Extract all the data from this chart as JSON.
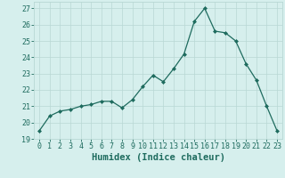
{
  "x": [
    0,
    1,
    2,
    3,
    4,
    5,
    6,
    7,
    8,
    9,
    10,
    11,
    12,
    13,
    14,
    15,
    16,
    17,
    18,
    19,
    20,
    21,
    22,
    23
  ],
  "y": [
    19.5,
    20.4,
    20.7,
    20.8,
    21.0,
    21.1,
    21.3,
    21.3,
    20.9,
    21.4,
    22.2,
    22.9,
    22.5,
    23.3,
    24.2,
    26.2,
    27.0,
    25.6,
    25.5,
    25.0,
    23.6,
    22.6,
    21.0,
    19.5
  ],
  "xlabel": "Humidex (Indice chaleur)",
  "xlim": [
    -0.5,
    23.5
  ],
  "ylim": [
    19,
    27.4
  ],
  "yticks": [
    19,
    20,
    21,
    22,
    23,
    24,
    25,
    26,
    27
  ],
  "xticks": [
    0,
    1,
    2,
    3,
    4,
    5,
    6,
    7,
    8,
    9,
    10,
    11,
    12,
    13,
    14,
    15,
    16,
    17,
    18,
    19,
    20,
    21,
    22,
    23
  ],
  "line_color": "#1e6b5e",
  "marker_color": "#1e6b5e",
  "bg_color": "#d6efed",
  "grid_color": "#b8d8d4",
  "tick_label_color": "#1e6b5e",
  "xlabel_color": "#1e6b5e",
  "tick_fontsize": 6.0,
  "xlabel_fontsize": 7.5
}
